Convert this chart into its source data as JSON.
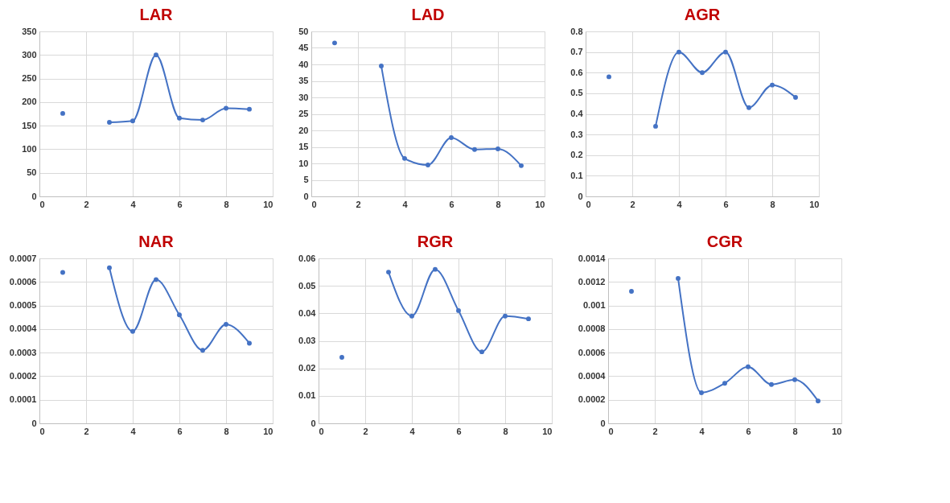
{
  "chart_data": [
    {
      "type": "line",
      "title": "LAR",
      "x": [
        1,
        2,
        3,
        4,
        5,
        6,
        7,
        8,
        9
      ],
      "series": [
        {
          "color": "#4472c4",
          "values": [
            176,
            null,
            157,
            160,
            300,
            166,
            162,
            187,
            185
          ]
        }
      ],
      "xlim": [
        0,
        10
      ],
      "xticks": [
        0,
        2,
        4,
        6,
        8,
        10
      ],
      "ylim": [
        0,
        350
      ],
      "yticks": [
        0,
        50,
        100,
        150,
        200,
        250,
        300,
        350
      ],
      "grid": true,
      "marker": "circle",
      "line_style": "solid"
    },
    {
      "type": "line",
      "title": "LAD",
      "x": [
        1,
        2,
        3,
        4,
        5,
        6,
        7,
        8,
        9
      ],
      "series": [
        {
          "color": "#4472c4",
          "values": [
            46.5,
            null,
            39.5,
            11.5,
            9.5,
            17.8,
            14.2,
            14.4,
            9.3
          ]
        }
      ],
      "xlim": [
        0,
        10
      ],
      "xticks": [
        0,
        2,
        4,
        6,
        8,
        10
      ],
      "ylim": [
        0,
        50
      ],
      "yticks": [
        0,
        5,
        10,
        15,
        20,
        25,
        30,
        35,
        40,
        45,
        50
      ],
      "grid": true,
      "marker": "circle",
      "line_style": "solid"
    },
    {
      "type": "line",
      "title": "AGR",
      "x": [
        1,
        2,
        3,
        4,
        5,
        6,
        7,
        8,
        9
      ],
      "series": [
        {
          "color": "#4472c4",
          "values": [
            0.58,
            null,
            0.34,
            0.7,
            0.6,
            0.7,
            0.43,
            0.54,
            0.48
          ]
        }
      ],
      "xlim": [
        0,
        10
      ],
      "xticks": [
        0,
        2,
        4,
        6,
        8,
        10
      ],
      "ylim": [
        0,
        0.8
      ],
      "yticks": [
        0,
        0.1,
        0.2,
        0.3,
        0.4,
        0.5,
        0.6,
        0.7,
        0.8
      ],
      "grid": true,
      "marker": "circle",
      "line_style": "solid"
    },
    {
      "type": "line",
      "title": "NAR",
      "x": [
        1,
        2,
        3,
        4,
        5,
        6,
        7,
        8,
        9
      ],
      "series": [
        {
          "color": "#4472c4",
          "values": [
            0.00064,
            null,
            0.00066,
            0.00039,
            0.00061,
            0.00046,
            0.00031,
            0.00042,
            0.00034
          ]
        }
      ],
      "xlim": [
        0,
        10
      ],
      "xticks": [
        0,
        2,
        4,
        6,
        8,
        10
      ],
      "ylim": [
        0,
        0.0007
      ],
      "yticks": [
        0,
        0.0001,
        0.0002,
        0.0003,
        0.0004,
        0.0005,
        0.0006,
        0.0007
      ],
      "grid": true,
      "marker": "circle",
      "line_style": "solid"
    },
    {
      "type": "line",
      "title": "RGR",
      "x": [
        1,
        2,
        3,
        4,
        5,
        6,
        7,
        8,
        9
      ],
      "series": [
        {
          "color": "#4472c4",
          "values": [
            0.024,
            null,
            0.055,
            0.039,
            0.056,
            0.041,
            0.026,
            0.039,
            0.038
          ]
        }
      ],
      "xlim": [
        0,
        10
      ],
      "xticks": [
        0,
        2,
        4,
        6,
        8,
        10
      ],
      "ylim": [
        0,
        0.06
      ],
      "yticks": [
        0,
        0.01,
        0.02,
        0.03,
        0.04,
        0.05,
        0.06
      ],
      "grid": true,
      "marker": "circle",
      "line_style": "solid"
    },
    {
      "type": "line",
      "title": "CGR",
      "x": [
        1,
        2,
        3,
        4,
        5,
        6,
        7,
        8,
        9
      ],
      "series": [
        {
          "color": "#4472c4",
          "values": [
            0.00112,
            null,
            0.00123,
            0.00026,
            0.00034,
            0.00048,
            0.00033,
            0.00037,
            0.00019
          ]
        }
      ],
      "xlim": [
        0,
        10
      ],
      "xticks": [
        0,
        2,
        4,
        6,
        8,
        10
      ],
      "ylim": [
        0,
        0.0014
      ],
      "yticks": [
        0,
        0.0002,
        0.0004,
        0.0006,
        0.0008,
        0.001,
        0.0012,
        0.0014
      ],
      "grid": true,
      "marker": "circle",
      "line_style": "solid"
    }
  ]
}
